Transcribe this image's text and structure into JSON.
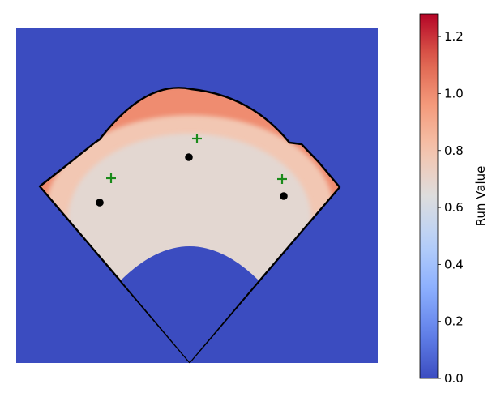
{
  "chart_data": {
    "type": "heatmap",
    "title": "",
    "subtitle": "",
    "description_visible": false,
    "colormap": "coolwarm",
    "colorbar": {
      "label": "Run Value",
      "range": [
        0.0,
        1.28
      ],
      "ticks": [
        {
          "value": 0.0,
          "label": "0.0"
        },
        {
          "value": 0.2,
          "label": "0.2"
        },
        {
          "value": 0.4,
          "label": "0.4"
        },
        {
          "value": 0.6,
          "label": "0.6"
        },
        {
          "value": 0.8,
          "label": "0.8"
        },
        {
          "value": 1.0,
          "label": "1.0"
        },
        {
          "value": 1.2,
          "label": "1.2"
        }
      ]
    },
    "background_value": 0.0,
    "field_regions": [
      {
        "region": "infield",
        "value": 0.0
      },
      {
        "region": "shallow-outfield",
        "value": 0.68
      },
      {
        "region": "mid-outfield",
        "value": 0.78
      },
      {
        "region": "deep-outfield",
        "value": 1.0
      },
      {
        "region": "warning-track",
        "value": 1.18
      }
    ],
    "markers": {
      "fielders_dot": {
        "color": "#000000",
        "count": 3,
        "positions": [
          "left",
          "center",
          "right"
        ]
      },
      "targets_plus": {
        "color": "#1a8a1a",
        "count": 3,
        "positions": [
          "left",
          "center",
          "right"
        ]
      }
    },
    "grid": false,
    "axes_visible": false
  }
}
